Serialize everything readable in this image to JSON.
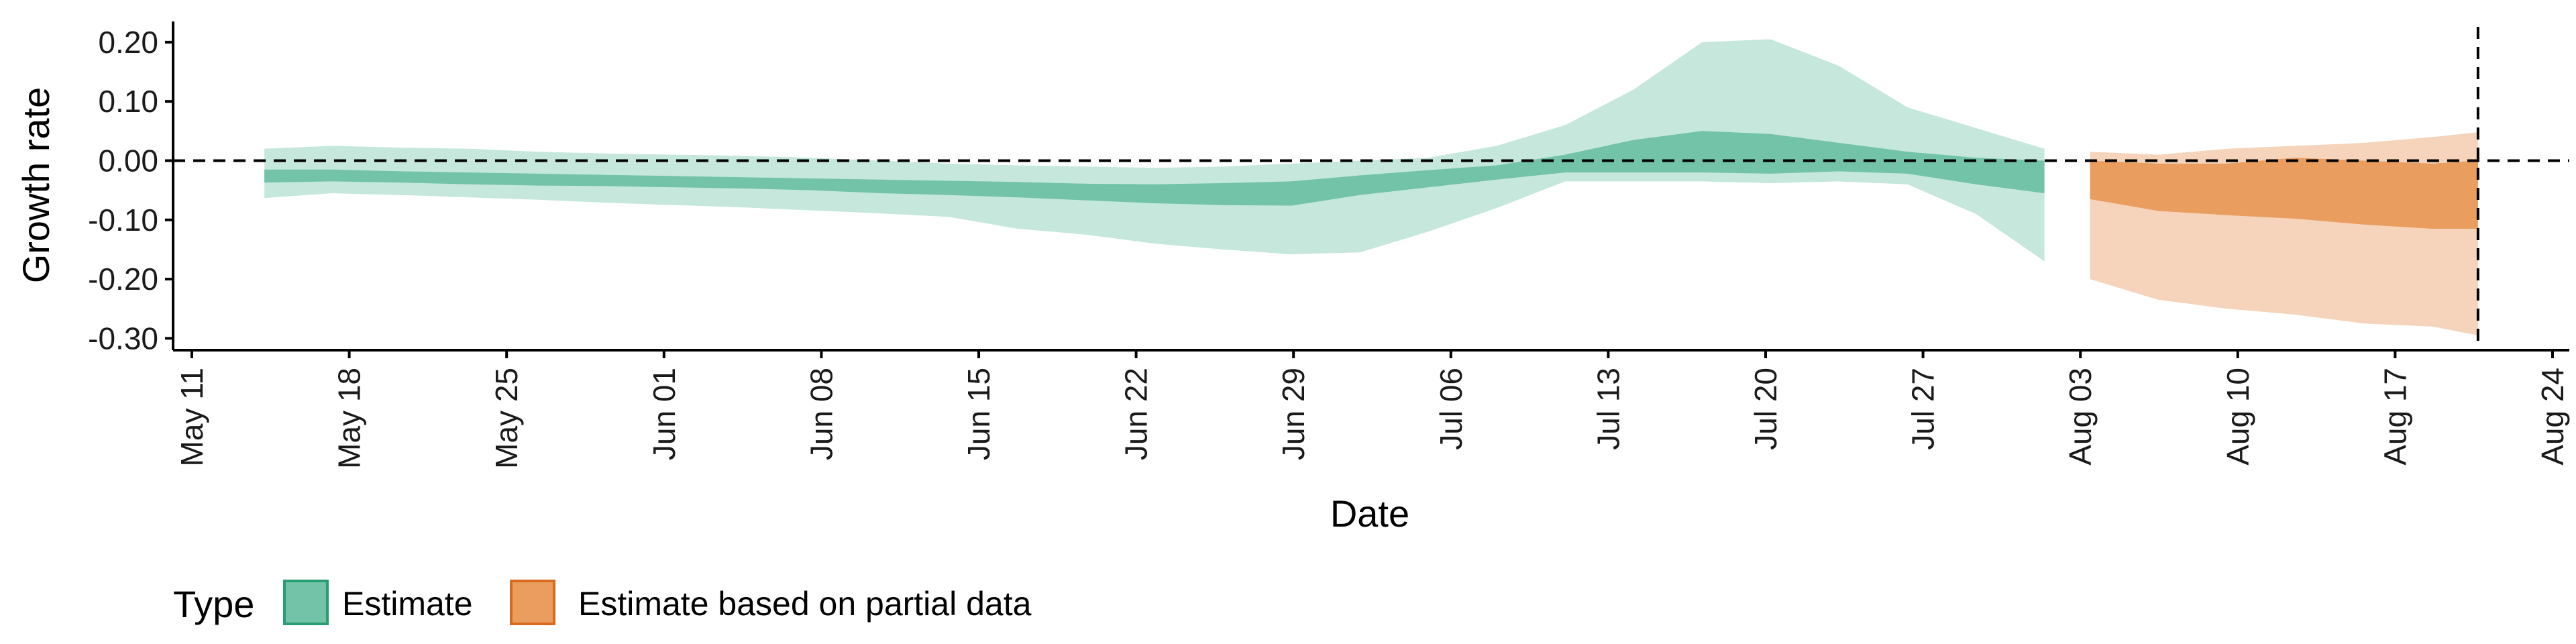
{
  "chart_data": {
    "type": "area",
    "title": "",
    "xlabel": "Date",
    "ylabel": "Growth rate",
    "x_tick_labels": [
      "May 11",
      "May 18",
      "May 25",
      "Jun 01",
      "Jun 08",
      "Jun 15",
      "Jun 22",
      "Jun 29",
      "Jul 06",
      "Jul 13",
      "Jul 20",
      "Jul 27",
      "Aug 03",
      "Aug 10",
      "Aug 17",
      "Aug 24"
    ],
    "y_tick_labels": [
      "0.20",
      "0.10",
      "0.00",
      "-0.10",
      "-0.20",
      "-0.30"
    ],
    "y_ticks": [
      0.2,
      0.1,
      0.0,
      -0.1,
      -0.2,
      -0.3
    ],
    "xlim": [
      "2020-05-11",
      "2020-08-24"
    ],
    "ylim": [
      -0.32,
      0.235
    ],
    "reference_lines": {
      "horizontal_y": 0.0,
      "vertical_x": "2020-08-20",
      "style": "dashed"
    },
    "legend": {
      "title": "Type",
      "position": "bottom-left",
      "items": [
        {
          "label": "Estimate",
          "color": "#72c3a7"
        },
        {
          "label": "Estimate based on partial data",
          "color": "#e99d5e"
        }
      ]
    },
    "series": [
      {
        "name": "Estimate",
        "color_inner": "#72c3a7",
        "color_outer": "#c5e7dc",
        "x": [
          "2020-05-15",
          "2020-05-18",
          "2020-05-21",
          "2020-05-24",
          "2020-05-27",
          "2020-05-30",
          "2020-06-02",
          "2020-06-05",
          "2020-06-08",
          "2020-06-11",
          "2020-06-14",
          "2020-06-17",
          "2020-06-20",
          "2020-06-23",
          "2020-06-26",
          "2020-06-29",
          "2020-07-02",
          "2020-07-05",
          "2020-07-08",
          "2020-07-11",
          "2020-07-14",
          "2020-07-17",
          "2020-07-20",
          "2020-07-23",
          "2020-07-26",
          "2020-07-29",
          "2020-08-01"
        ],
        "lower_outer": [
          -0.063,
          -0.055,
          -0.058,
          -0.062,
          -0.066,
          -0.071,
          -0.075,
          -0.079,
          -0.084,
          -0.089,
          -0.095,
          -0.115,
          -0.125,
          -0.14,
          -0.15,
          -0.158,
          -0.155,
          -0.12,
          -0.08,
          -0.035,
          -0.035,
          -0.035,
          -0.038,
          -0.035,
          -0.04,
          -0.09,
          -0.17
        ],
        "lower_inner": [
          -0.037,
          -0.035,
          -0.037,
          -0.04,
          -0.042,
          -0.043,
          -0.045,
          -0.047,
          -0.05,
          -0.055,
          -0.058,
          -0.062,
          -0.067,
          -0.072,
          -0.075,
          -0.076,
          -0.058,
          -0.045,
          -0.032,
          -0.02,
          -0.02,
          -0.02,
          -0.022,
          -0.018,
          -0.022,
          -0.04,
          -0.055
        ],
        "upper_inner": [
          -0.015,
          -0.015,
          -0.018,
          -0.02,
          -0.022,
          -0.024,
          -0.026,
          -0.028,
          -0.03,
          -0.032,
          -0.034,
          -0.036,
          -0.039,
          -0.04,
          -0.038,
          -0.035,
          -0.025,
          -0.016,
          -0.008,
          0.01,
          0.035,
          0.05,
          0.045,
          0.03,
          0.015,
          0.005,
          0.0
        ],
        "upper_outer": [
          0.02,
          0.025,
          0.022,
          0.02,
          0.015,
          0.012,
          0.01,
          0.008,
          0.005,
          0.0,
          -0.005,
          -0.008,
          -0.01,
          -0.012,
          -0.01,
          -0.005,
          0.0,
          0.005,
          0.025,
          0.06,
          0.12,
          0.2,
          0.205,
          0.16,
          0.09,
          0.055,
          0.02
        ]
      },
      {
        "name": "Estimate based on partial data",
        "color_inner": "#e99d5e",
        "color_outer": "#f5d4bb",
        "x": [
          "2020-08-03",
          "2020-08-06",
          "2020-08-09",
          "2020-08-12",
          "2020-08-15",
          "2020-08-18",
          "2020-08-20"
        ],
        "lower_outer": [
          -0.2,
          -0.235,
          -0.25,
          -0.26,
          -0.275,
          -0.28,
          -0.295
        ],
        "lower_inner": [
          -0.065,
          -0.085,
          -0.092,
          -0.098,
          -0.108,
          -0.115,
          -0.115
        ],
        "upper_inner": [
          0.0,
          -0.005,
          -0.005,
          0.005,
          0.0,
          -0.005,
          0.0
        ],
        "upper_outer": [
          0.015,
          0.01,
          0.02,
          0.025,
          0.03,
          0.04,
          0.048
        ]
      }
    ]
  }
}
